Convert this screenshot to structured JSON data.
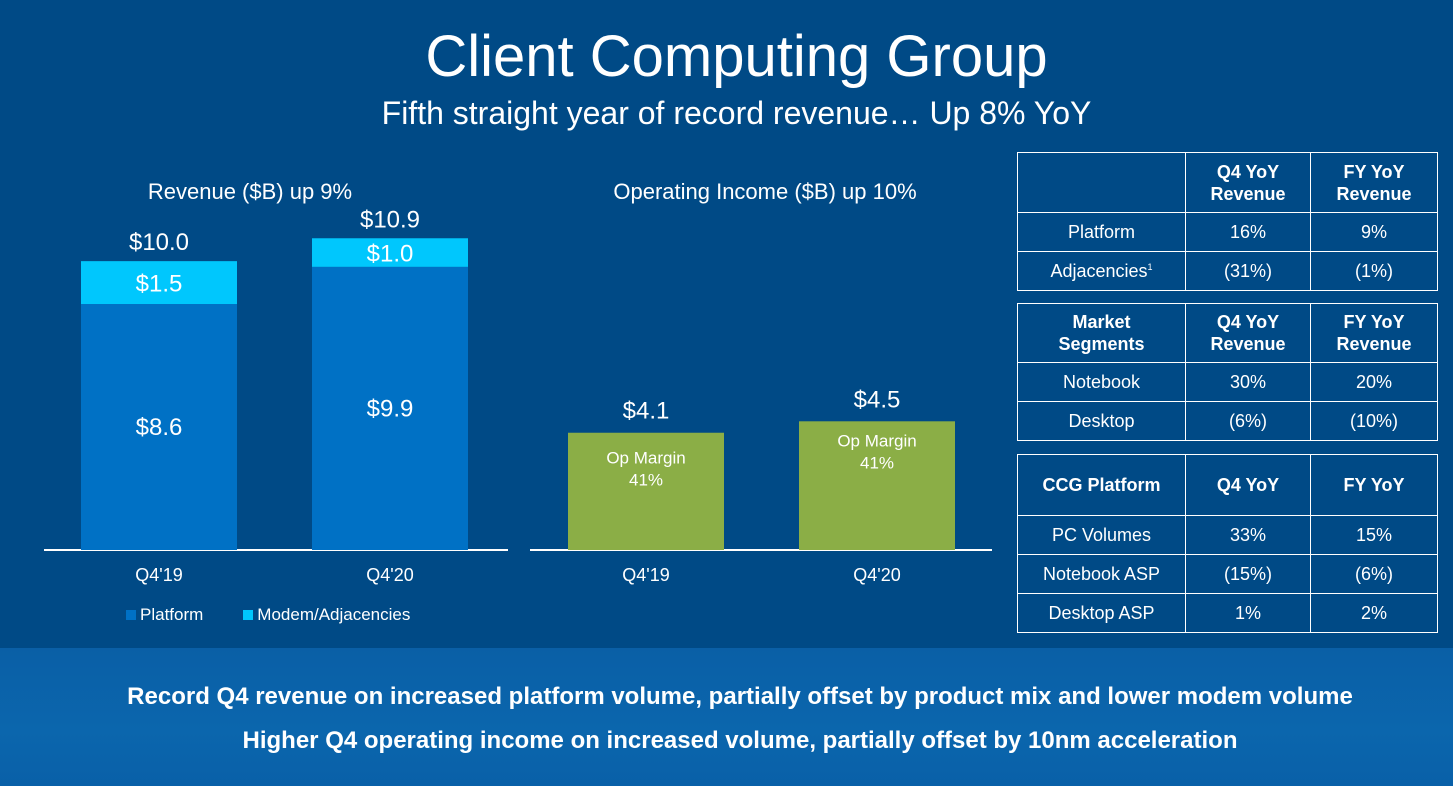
{
  "header": {
    "title": "Client Computing Group",
    "subtitle": "Fifth straight year of record revenue… Up 8% YoY"
  },
  "chart_data": [
    {
      "type": "bar",
      "stacked": true,
      "title": "Revenue ($B) up 9%",
      "categories": [
        "Q4'19",
        "Q4'20"
      ],
      "series": [
        {
          "name": "Platform",
          "values": [
            8.6,
            9.9
          ],
          "labels": [
            "$8.6",
            "$9.9"
          ],
          "color": "#0071c5"
        },
        {
          "name": "Modem/Adjacencies",
          "values": [
            1.5,
            1.0
          ],
          "labels": [
            "$1.5",
            "$1.0"
          ],
          "color": "#00c7fd"
        }
      ],
      "totals": [
        10.0,
        10.9
      ],
      "total_labels": [
        "$10.0",
        "$10.9"
      ],
      "ylim": [
        0,
        11.5
      ],
      "legend_position": "bottom-left"
    },
    {
      "type": "bar",
      "title": "Operating Income ($B) up 10%",
      "categories": [
        "Q4'19",
        "Q4'20"
      ],
      "values": [
        4.1,
        4.5
      ],
      "value_labels": [
        "$4.1",
        "$4.5"
      ],
      "bar_text_line1": [
        "Op Margin",
        "Op Margin"
      ],
      "bar_text_line2": [
        "41%",
        "41%"
      ],
      "color": "#8bae46",
      "ylim": [
        0,
        11.5
      ]
    }
  ],
  "legend": {
    "platform": "Platform",
    "modem": "Modem/Adjacencies"
  },
  "tables": {
    "t1": {
      "headers": [
        "",
        "Q4 YoY\nRevenue",
        "FY YoY\nRevenue"
      ],
      "rows": [
        [
          "Platform",
          "16%",
          "9%"
        ],
        [
          "Adjacencies",
          "(31%)",
          "(1%)"
        ]
      ],
      "footnote_mark": "1"
    },
    "t2": {
      "headers": [
        "Market\nSegments",
        "Q4 YoY\nRevenue",
        "FY YoY\nRevenue"
      ],
      "rows": [
        [
          "Notebook",
          "30%",
          "20%"
        ],
        [
          "Desktop",
          "(6%)",
          "(10%)"
        ]
      ]
    },
    "t3": {
      "headers": [
        "CCG Platform",
        "Q4 YoY",
        "FY YoY"
      ],
      "rows": [
        [
          "PC Volumes",
          "33%",
          "15%"
        ],
        [
          "Notebook ASP",
          "(15%)",
          "(6%)"
        ],
        [
          "Desktop ASP",
          "1%",
          "2%"
        ]
      ]
    }
  },
  "footer": {
    "line1": "Record Q4 revenue on increased platform volume, partially offset by product mix and lower modem volume",
    "line2": "Higher Q4 operating income on increased volume, partially offset by 10nm acceleration"
  },
  "colors": {
    "background": "#004a86",
    "platform": "#0071c5",
    "modem": "#00c7fd",
    "op_income": "#8bae46",
    "footer_band": "#0b66ad"
  }
}
